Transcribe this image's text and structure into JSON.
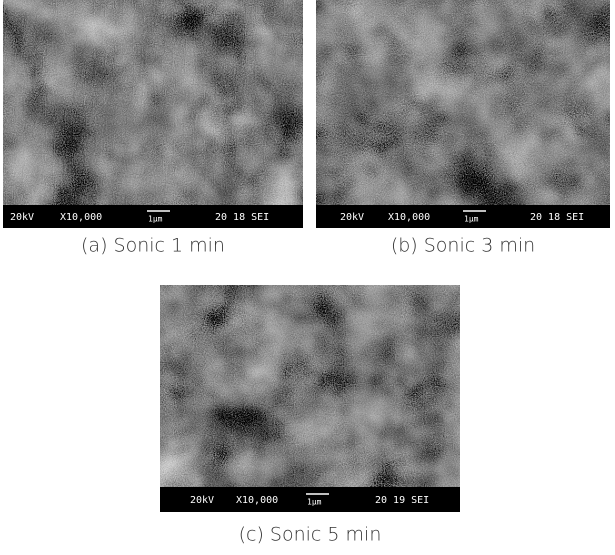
{
  "panels": [
    {
      "voltage": "20kV",
      "magnification": "X10,000",
      "scale": "1μm",
      "code": "20 18 SEI",
      "caption": "(a) Sonic 1 min"
    },
    {
      "voltage": "20kV",
      "magnification": "X10,000",
      "scale": "1μm",
      "code": "20 18 SEI",
      "caption": "(b) Sonic 3 min"
    },
    {
      "voltage": "20kV",
      "magnification": "X10,000",
      "scale": "1μm",
      "code": "20 19 SEI",
      "caption": "(c) Sonic 5 min"
    }
  ]
}
